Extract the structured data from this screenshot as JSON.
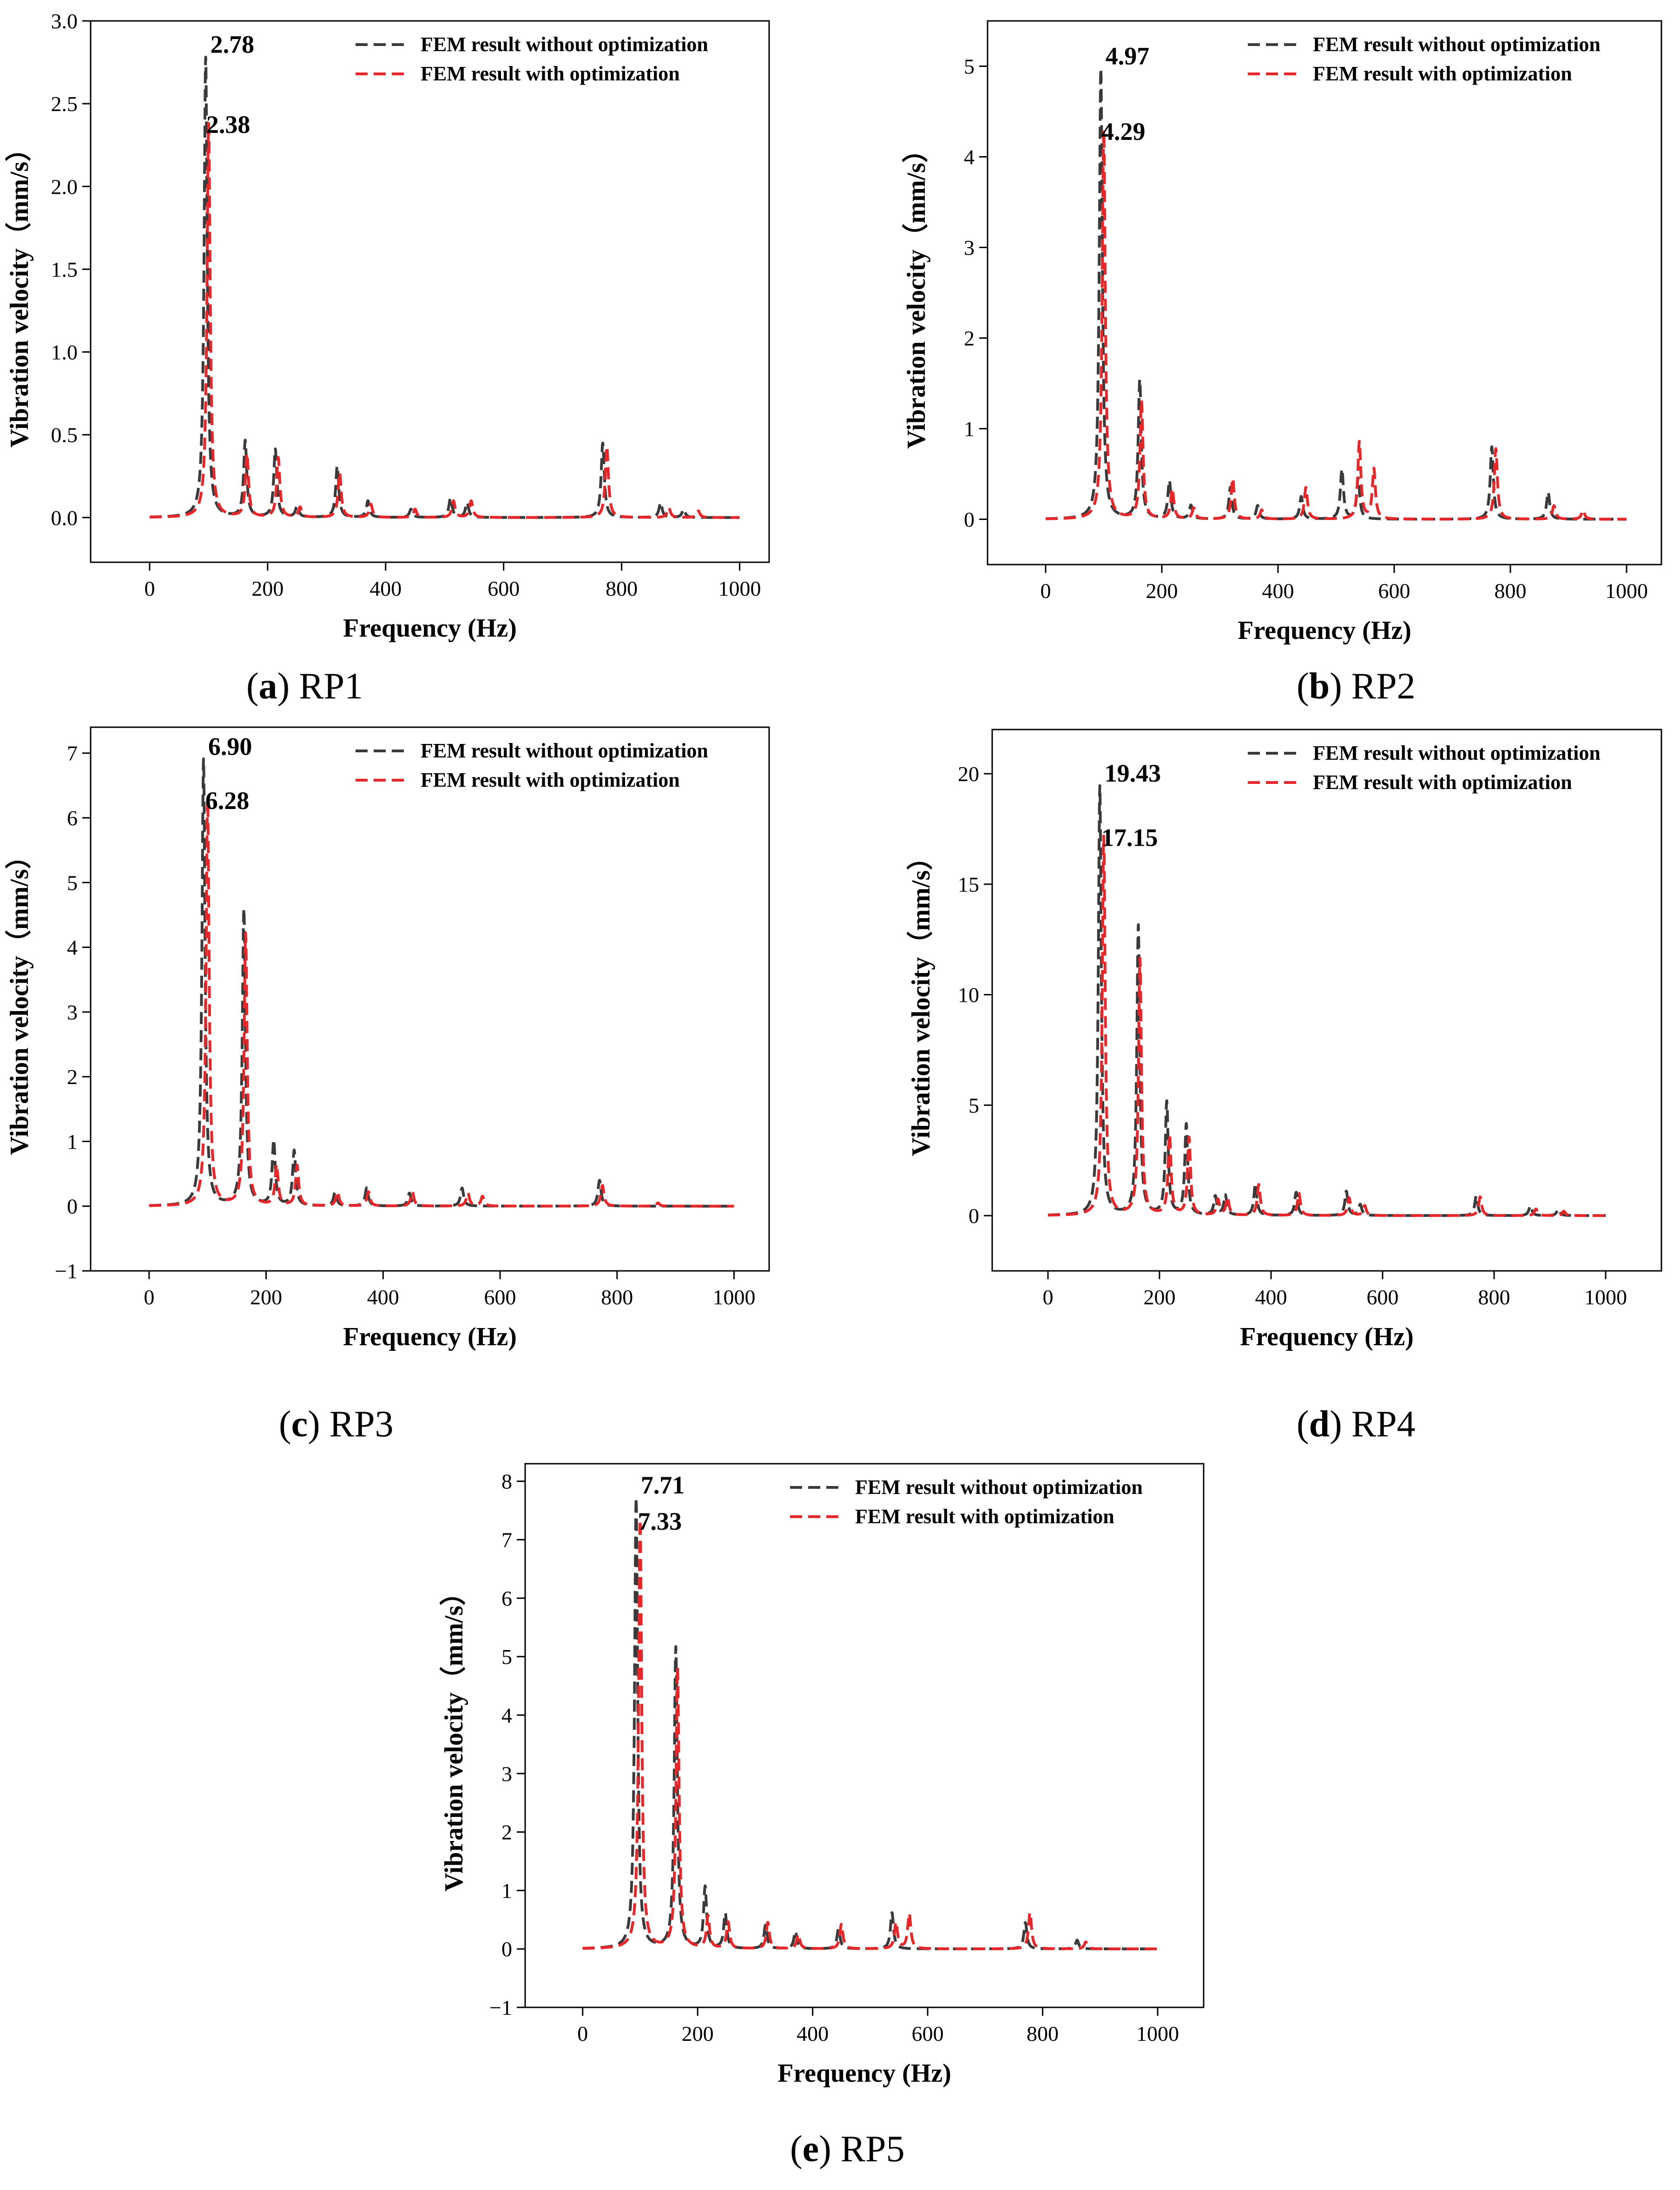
{
  "colors": {
    "without": "#3a3a3a",
    "with": "#e8272a",
    "axis": "#000000",
    "background": "#ffffff"
  },
  "chart_data": [
    {
      "type": "line",
      "id": "a",
      "caption": {
        "label": "a",
        "text": "RP1"
      },
      "xlabel": "Frequency (Hz)",
      "ylabel": "Vibration velocity（mm/s）",
      "xlim": [
        -100,
        1050
      ],
      "ylim": [
        -0.27,
        3.0
      ],
      "xticks": [
        0,
        200,
        400,
        600,
        800,
        1000
      ],
      "yticks": [
        0.0,
        0.5,
        1.0,
        1.5,
        2.0,
        2.5,
        3.0
      ],
      "ytick_labels": [
        "0.0",
        "0.5",
        "1.0",
        "1.5",
        "2.0",
        "2.5",
        "3.0"
      ],
      "legend": [
        "FEM result without optimization",
        "FEM result with optimization"
      ],
      "annotations": [
        "2.78",
        "2.38"
      ],
      "series": [
        {
          "name": "FEM result without optimization",
          "peaks": [
            [
              95,
              2.78
            ],
            [
              162,
              0.46
            ],
            [
              213,
              0.41
            ],
            [
              250,
              0.07
            ],
            [
              318,
              0.31
            ],
            [
              370,
              0.1
            ],
            [
              443,
              0.05
            ],
            [
              510,
              0.12
            ],
            [
              538,
              0.09
            ],
            [
              768,
              0.45
            ],
            [
              866,
              0.09
            ],
            [
              905,
              0.05
            ]
          ]
        },
        {
          "name": "FEM result with optimization",
          "peaks": [
            [
              100,
              2.38
            ],
            [
              165,
              0.38
            ],
            [
              218,
              0.36
            ],
            [
              255,
              0.06
            ],
            [
              322,
              0.27
            ],
            [
              375,
              0.08
            ],
            [
              450,
              0.05
            ],
            [
              515,
              0.1
            ],
            [
              545,
              0.1
            ],
            [
              775,
              0.43
            ],
            [
              880,
              0.06
            ],
            [
              930,
              0.04
            ]
          ]
        }
      ]
    },
    {
      "type": "line",
      "id": "b",
      "caption": {
        "label": "b",
        "text": "RP2"
      },
      "xlabel": "Frequency (Hz)",
      "ylabel": "Vibration velocity（mm/s）",
      "xlim": [
        -100,
        1060
      ],
      "ylim": [
        -0.5,
        5.5
      ],
      "xticks": [
        0,
        200,
        400,
        600,
        800,
        1000
      ],
      "yticks": [
        0,
        1,
        2,
        3,
        4,
        5
      ],
      "ytick_labels": [
        "0",
        "1",
        "2",
        "3",
        "4",
        "5"
      ],
      "legend": [
        "FEM result without optimization",
        "FEM result with optimization"
      ],
      "annotations": [
        "4.97",
        "4.29"
      ],
      "series": [
        {
          "name": "FEM result without optimization",
          "peaks": [
            [
              95,
              4.97
            ],
            [
              162,
              1.53
            ],
            [
              213,
              0.42
            ],
            [
              250,
              0.15
            ],
            [
              318,
              0.35
            ],
            [
              365,
              0.15
            ],
            [
              440,
              0.25
            ],
            [
              510,
              0.55
            ],
            [
              538,
              0.45
            ],
            [
              768,
              0.8
            ],
            [
              865,
              0.3
            ]
          ]
        },
        {
          "name": "FEM result with optimization",
          "peaks": [
            [
              100,
              4.29
            ],
            [
              165,
              1.3
            ],
            [
              218,
              0.33
            ],
            [
              255,
              0.12
            ],
            [
              322,
              0.45
            ],
            [
              372,
              0.1
            ],
            [
              448,
              0.35
            ],
            [
              540,
              0.85
            ],
            [
              565,
              0.55
            ],
            [
              775,
              0.78
            ],
            [
              875,
              0.15
            ],
            [
              925,
              0.1
            ]
          ]
        }
      ]
    },
    {
      "type": "line",
      "id": "c",
      "caption": {
        "label": "c",
        "text": "RP3"
      },
      "xlabel": "Frequency (Hz)",
      "ylabel": "Vibration velocity（mm/s）",
      "xlim": [
        -100,
        1060
      ],
      "ylim": [
        -1,
        7.4
      ],
      "xticks": [
        0,
        200,
        400,
        600,
        800,
        1000
      ],
      "yticks": [
        -1,
        0,
        1,
        2,
        3,
        4,
        5,
        6,
        7
      ],
      "ytick_labels": [
        "−1",
        "0",
        "1",
        "2",
        "3",
        "4",
        "5",
        "6",
        "7"
      ],
      "legend": [
        "FEM result without optimization",
        "FEM result with optimization"
      ],
      "annotations": [
        "6.90",
        "6.28"
      ],
      "series": [
        {
          "name": "FEM result without optimization",
          "peaks": [
            [
              93,
              6.9
            ],
            [
              162,
              4.58
            ],
            [
              213,
              1.0
            ],
            [
              248,
              0.85
            ],
            [
              318,
              0.22
            ],
            [
              372,
              0.28
            ],
            [
              445,
              0.2
            ],
            [
              535,
              0.28
            ],
            [
              770,
              0.4
            ]
          ]
        },
        {
          "name": "FEM result with optimization",
          "peaks": [
            [
              100,
              6.28
            ],
            [
              165,
              4.2
            ],
            [
              218,
              0.62
            ],
            [
              253,
              0.62
            ],
            [
              322,
              0.22
            ],
            [
              375,
              0.22
            ],
            [
              450,
              0.22
            ],
            [
              545,
              0.2
            ],
            [
              570,
              0.15
            ],
            [
              775,
              0.32
            ],
            [
              870,
              0.05
            ]
          ]
        }
      ]
    },
    {
      "type": "line",
      "id": "d",
      "caption": {
        "label": "d",
        "text": "RP4"
      },
      "xlabel": "Frequency (Hz)",
      "ylabel": "Vibration velocity（mm/s）",
      "xlim": [
        -100,
        1100
      ],
      "ylim": [
        -2.5,
        22.0
      ],
      "xticks": [
        0,
        200,
        400,
        600,
        800,
        1000
      ],
      "yticks": [
        0,
        5,
        10,
        15,
        20
      ],
      "ytick_labels": [
        "0",
        "5",
        "10",
        "15",
        "20"
      ],
      "legend": [
        "FEM result without optimization",
        "FEM result with optimization"
      ],
      "annotations": [
        "19.43",
        "17.15"
      ],
      "series": [
        {
          "name": "FEM result without optimization",
          "peaks": [
            [
              93,
              19.43
            ],
            [
              162,
              13.1
            ],
            [
              213,
              5.1
            ],
            [
              248,
              4.1
            ],
            [
              300,
              0.85
            ],
            [
              318,
              0.9
            ],
            [
              372,
              1.45
            ],
            [
              445,
              1.05
            ],
            [
              535,
              1.1
            ],
            [
              560,
              0.5
            ],
            [
              768,
              0.9
            ],
            [
              865,
              0.45
            ],
            [
              915,
              0.3
            ]
          ]
        },
        {
          "name": "FEM result with optimization",
          "peaks": [
            [
              100,
              17.15
            ],
            [
              165,
              11.6
            ],
            [
              218,
              3.6
            ],
            [
              253,
              3.5
            ],
            [
              305,
              0.7
            ],
            [
              322,
              0.8
            ],
            [
              378,
              1.4
            ],
            [
              450,
              1.0
            ],
            [
              540,
              0.8
            ],
            [
              568,
              0.45
            ],
            [
              775,
              0.85
            ],
            [
              875,
              0.3
            ],
            [
              925,
              0.2
            ]
          ]
        }
      ]
    },
    {
      "type": "line",
      "id": "e",
      "caption": {
        "label": "e",
        "text": "RP5"
      },
      "xlabel": "Frequency (Hz)",
      "ylabel": "Vibration velocity（mm/s）",
      "xlim": [
        -100,
        1080
      ],
      "ylim": [
        -1,
        8.3
      ],
      "xticks": [
        0,
        200,
        400,
        600,
        800,
        1000
      ],
      "yticks": [
        -1,
        0,
        1,
        2,
        3,
        4,
        5,
        6,
        7,
        8
      ],
      "ytick_labels": [
        "−1",
        "0",
        "1",
        "2",
        "3",
        "4",
        "5",
        "6",
        "7",
        "8"
      ],
      "legend": [
        "FEM result without optimization",
        "FEM result with optimization"
      ],
      "annotations": [
        "7.71",
        "7.33"
      ],
      "series": [
        {
          "name": "FEM result without optimization",
          "peaks": [
            [
              93,
              7.71
            ],
            [
              162,
              5.15
            ],
            [
              213,
              1.05
            ],
            [
              248,
              0.6
            ],
            [
              318,
              0.4
            ],
            [
              370,
              0.3
            ],
            [
              445,
              0.35
            ],
            [
              538,
              0.62
            ],
            [
              770,
              0.45
            ],
            [
              860,
              0.15
            ]
          ]
        },
        {
          "name": "FEM result with optimization",
          "peaks": [
            [
              100,
              7.33
            ],
            [
              165,
              4.8
            ],
            [
              218,
              0.55
            ],
            [
              253,
              0.45
            ],
            [
              322,
              0.45
            ],
            [
              375,
              0.25
            ],
            [
              450,
              0.42
            ],
            [
              545,
              0.45
            ],
            [
              568,
              0.6
            ],
            [
              778,
              0.62
            ],
            [
              875,
              0.12
            ]
          ]
        }
      ]
    }
  ]
}
